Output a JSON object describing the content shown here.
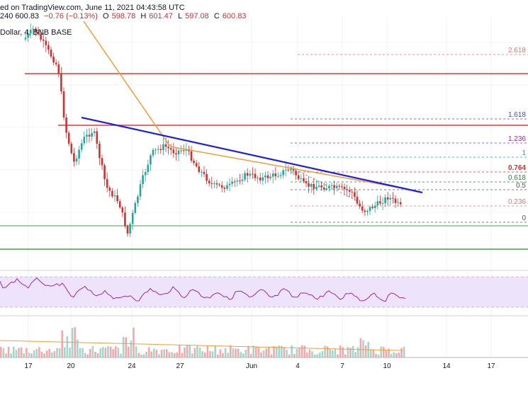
{
  "header": {
    "published": "ed on TradingView.com, June 11, 2021 04:43:58 UTC",
    "symbol_fragment": "240 600.83",
    "change": "−0.76 (−0.13%)",
    "ohlc": [
      {
        "label": "O",
        "value": "598.78"
      },
      {
        "label": "H",
        "value": "601.47"
      },
      {
        "label": "L",
        "value": "597.08"
      },
      {
        "label": "C",
        "value": "600.83"
      }
    ]
  },
  "symbol_label": "Dollar, 4, BNB BASE",
  "chart_data": {
    "type": "candlestick",
    "x_ticks": [
      "17",
      "20",
      "24",
      "27",
      "Jun",
      "4",
      "7",
      "10",
      "14",
      "17"
    ],
    "fib_levels": [
      {
        "label": "2.618",
        "color": "#e57373"
      },
      {
        "label": "1.618",
        "color": "#3f51b5"
      },
      {
        "label": "1.236",
        "color": "#9c27b0"
      },
      {
        "label": "1",
        "color": "#26a69a"
      },
      {
        "label": "0.764",
        "color": "#d32f2f"
      },
      {
        "label": "0.618",
        "color": "#2e7d32"
      },
      {
        "label": "0.5",
        "color": "#555555"
      },
      {
        "label": "0.236",
        "color": "#e57373"
      },
      {
        "label": "0",
        "color": "#555555"
      }
    ],
    "colors": {
      "up": "#26a69a",
      "down": "#d32f2f",
      "ma": "#f39c3c",
      "trendline": "#1e1ee6",
      "resistance": "#e53935",
      "support": "#43a047",
      "rsi": "#9c27b0",
      "rsi_band": "#ede4fb"
    }
  }
}
